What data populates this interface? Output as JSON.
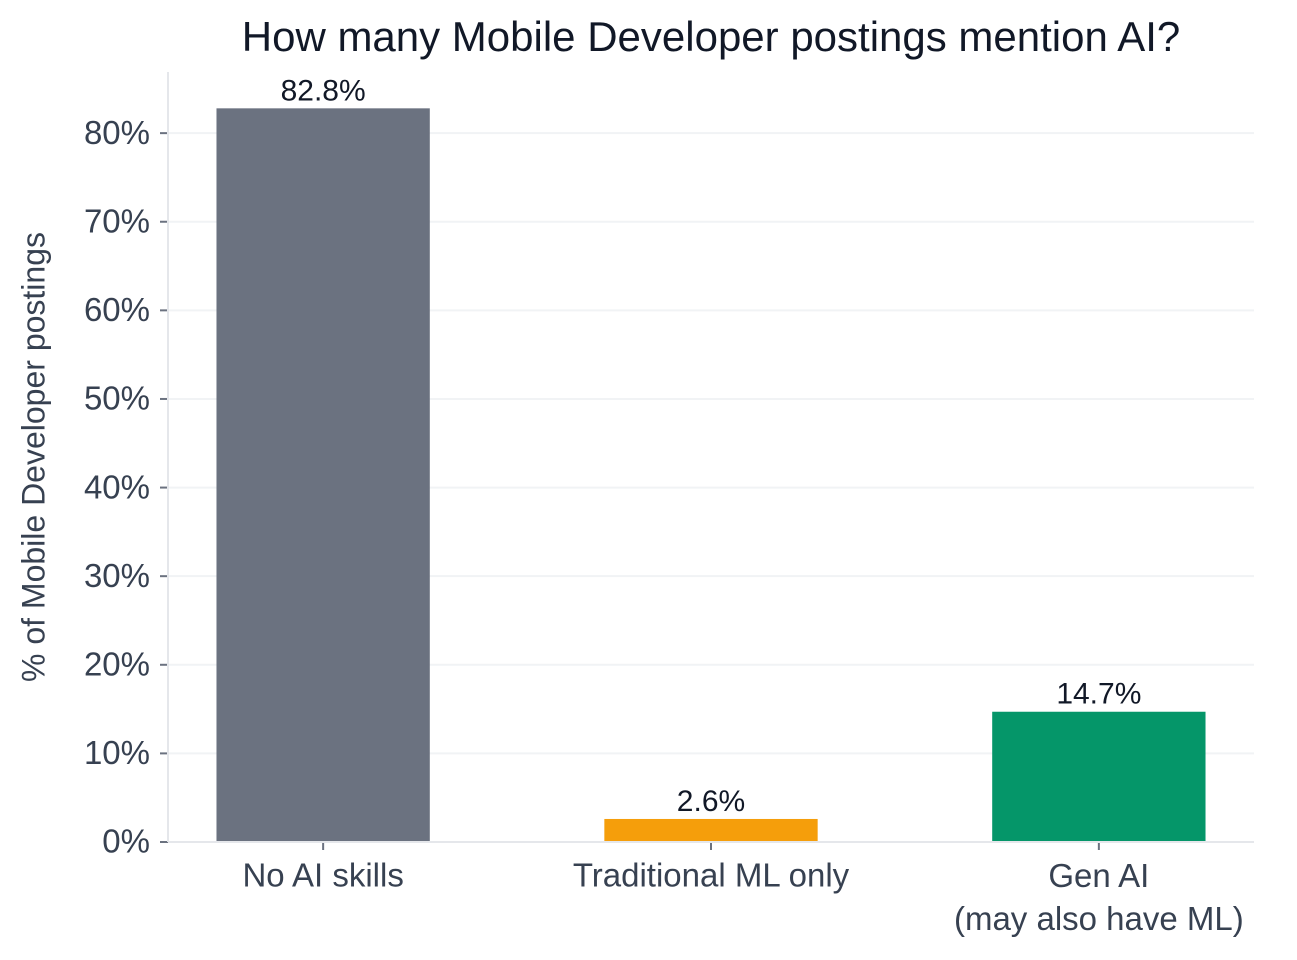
{
  "chart_data": {
    "type": "bar",
    "title": "How many Mobile Developer postings mention AI?",
    "y_label": "% of Mobile Developer postings",
    "categories": [
      "No AI skills",
      "Traditional ML only",
      "Gen AI\n(may also have ML)"
    ],
    "values": [
      82.8,
      2.6,
      14.7
    ],
    "value_labels": [
      "82.8%",
      "2.6%",
      "14.7%"
    ],
    "colors": [
      "#6b7280",
      "#f59e0b",
      "#059669"
    ],
    "ylim": [
      0,
      86.9
    ],
    "yticks": [
      {
        "value": 0,
        "label": "0%"
      },
      {
        "value": 10,
        "label": "10%"
      },
      {
        "value": 20,
        "label": "20%"
      },
      {
        "value": 30,
        "label": "30%"
      },
      {
        "value": 40,
        "label": "40%"
      },
      {
        "value": 50,
        "label": "50%"
      },
      {
        "value": 60,
        "label": "60%"
      },
      {
        "value": 70,
        "label": "70%"
      },
      {
        "value": 80,
        "label": "80%"
      }
    ],
    "grid": true
  }
}
